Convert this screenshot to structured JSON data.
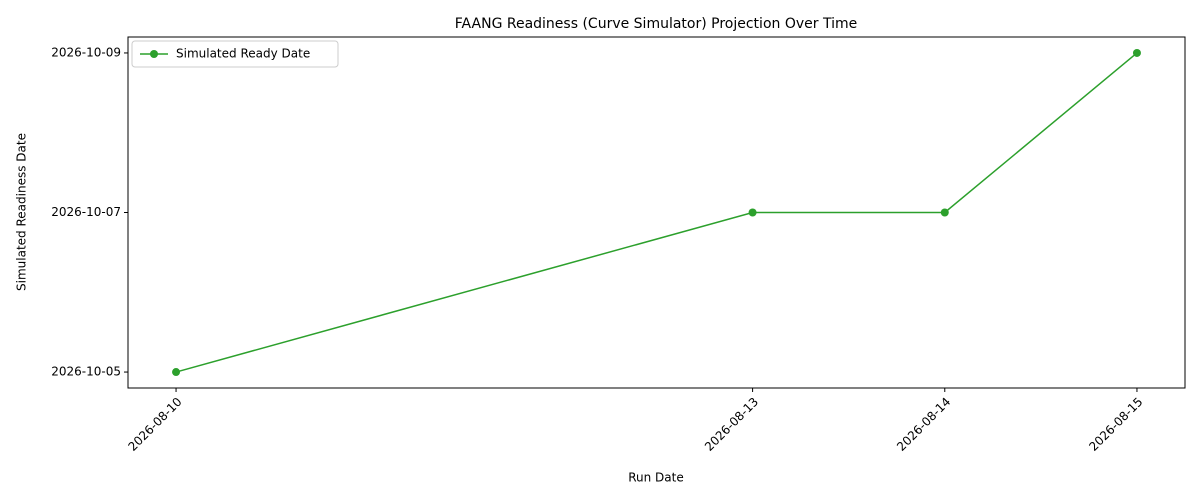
{
  "chart_data": {
    "type": "line",
    "title": "FAANG Readiness (Curve Simulator) Projection Over Time",
    "x_label": "Run Date",
    "y_label": "Simulated Readiness Date",
    "x": [
      "2026-08-10",
      "2026-08-13",
      "2026-08-14",
      "2026-08-15"
    ],
    "series": [
      {
        "name": "Simulated Ready Date",
        "color": "#2ca02c",
        "values": [
          "2026-10-05",
          "2026-10-07",
          "2026-10-07",
          "2026-10-09"
        ]
      }
    ],
    "xlim": [
      "2026-08-09T18:00Z",
      "2026-08-15T06:00Z"
    ],
    "ylim": [
      "2026-10-04T19:12Z",
      "2026-10-09T04:48Z"
    ],
    "xticks": [
      "2026-08-10",
      "2026-08-13",
      "2026-08-14",
      "2026-08-15"
    ],
    "yticks": [
      "2026-10-05",
      "2026-10-07",
      "2026-10-09"
    ],
    "legend": "upper left",
    "markers": true,
    "grid": false
  }
}
